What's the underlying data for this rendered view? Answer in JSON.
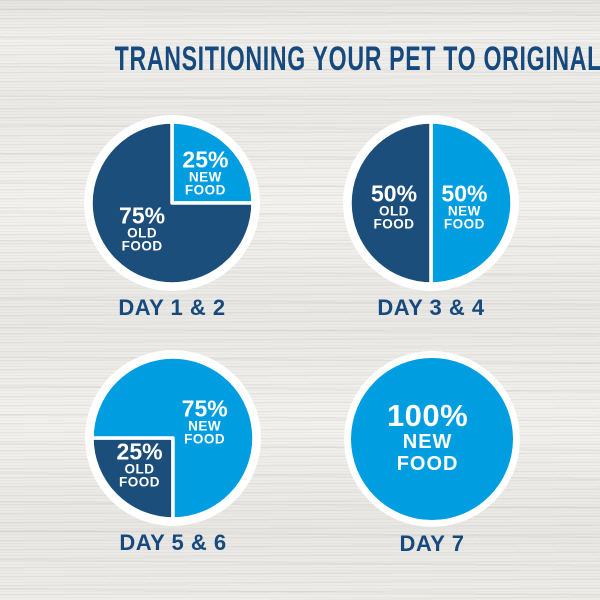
{
  "page": {
    "title": "TRANSITIONING YOUR PET TO ORIGINAL"
  },
  "colors": {
    "old_food_navy": "#1c4e7c",
    "new_food_blue": "#009ee0",
    "heading_navy": "#164a7e",
    "pie_ring_white": "#ffffff",
    "label_text_white": "#ffffff",
    "background_wood": "#edecea"
  },
  "chart_data": [
    {
      "type": "pie",
      "caption": "DAY 1 & 2",
      "start_angle": 0,
      "slices": [
        {
          "name": "new-food",
          "value": 25,
          "color": "#009ee0",
          "label": {
            "pct": "25%",
            "lines": [
              "NEW",
              "FOOD"
            ],
            "x": 0.69,
            "y": 0.33,
            "size": "normal"
          }
        },
        {
          "name": "old-food",
          "value": 75,
          "color": "#1c4e7c",
          "label": {
            "pct": "75%",
            "lines": [
              "OLD",
              "FOOD"
            ],
            "x": 0.33,
            "y": 0.65,
            "size": "normal"
          }
        }
      ]
    },
    {
      "type": "pie",
      "caption": "DAY 3 & 4",
      "start_angle": 0,
      "slices": [
        {
          "name": "new-food",
          "value": 50,
          "color": "#009ee0",
          "label": {
            "pct": "50%",
            "lines": [
              "NEW",
              "FOOD"
            ],
            "x": 0.69,
            "y": 0.52,
            "size": "normal"
          }
        },
        {
          "name": "old-food",
          "value": 50,
          "color": "#1c4e7c",
          "label": {
            "pct": "50%",
            "lines": [
              "OLD",
              "FOOD"
            ],
            "x": 0.29,
            "y": 0.52,
            "size": "normal"
          }
        }
      ]
    },
    {
      "type": "pie",
      "caption": "DAY 5 & 6",
      "start_angle": 180,
      "slices": [
        {
          "name": "old-food",
          "value": 25,
          "color": "#1c4e7c",
          "label": {
            "pct": "25%",
            "lines": [
              "OLD",
              "FOOD"
            ],
            "x": 0.31,
            "y": 0.655,
            "size": "normal"
          }
        },
        {
          "name": "new-food",
          "value": 75,
          "color": "#009ee0",
          "label": {
            "pct": "75%",
            "lines": [
              "NEW",
              "FOOD"
            ],
            "x": 0.68,
            "y": 0.41,
            "size": "normal"
          }
        }
      ]
    },
    {
      "type": "pie",
      "caption": "DAY 7",
      "start_angle": 0,
      "slices": [
        {
          "name": "new-food",
          "value": 100,
          "color": "#009ee0",
          "label": {
            "pct": "100%",
            "lines": [
              "NEW",
              "FOOD"
            ],
            "x": 0.475,
            "y": 0.495,
            "size": "large"
          }
        }
      ]
    }
  ]
}
